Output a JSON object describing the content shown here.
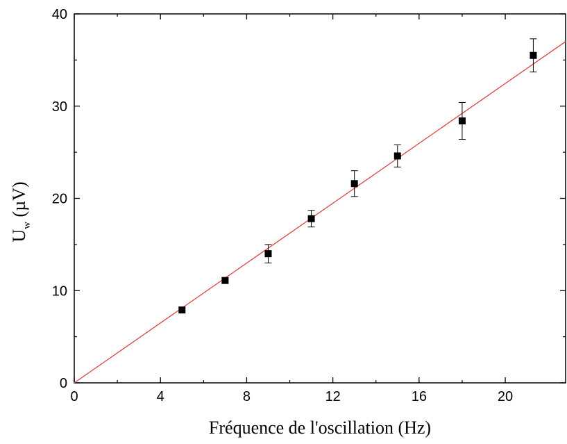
{
  "chart_data": {
    "type": "scatter",
    "xlabel": "Fréquence de l'oscillation (Hz)",
    "ylabel": {
      "main": "U",
      "subscript": "w",
      "unit": " (µV)"
    },
    "xlim": [
      0,
      22.8
    ],
    "ylim": [
      0,
      40
    ],
    "xticks": [
      0,
      4,
      8,
      12,
      16,
      20
    ],
    "yticks": [
      0,
      10,
      20,
      30,
      40
    ],
    "xtick_labels": [
      "0",
      "4",
      "8",
      "12",
      "16",
      "20"
    ],
    "ytick_labels": [
      "0",
      "10",
      "20",
      "30",
      "40"
    ],
    "grid": false,
    "series": [
      {
        "type": "scatter",
        "marker": "square",
        "color": "#000000",
        "points": [
          {
            "x": 5,
            "y": 7.9,
            "err": 0.3
          },
          {
            "x": 7,
            "y": 11.1,
            "err": 0.3
          },
          {
            "x": 9,
            "y": 14.0,
            "err": 1.0
          },
          {
            "x": 11,
            "y": 17.8,
            "err": 0.9
          },
          {
            "x": 13,
            "y": 21.6,
            "err": 1.4
          },
          {
            "x": 15,
            "y": 24.6,
            "err": 1.2
          },
          {
            "x": 18,
            "y": 28.4,
            "err": 2.0
          },
          {
            "x": 21.3,
            "y": 35.5,
            "err": 1.8
          }
        ]
      },
      {
        "type": "line",
        "color": "#e84040",
        "x": [
          0,
          22.8
        ],
        "y": [
          0,
          37.0
        ]
      }
    ]
  }
}
